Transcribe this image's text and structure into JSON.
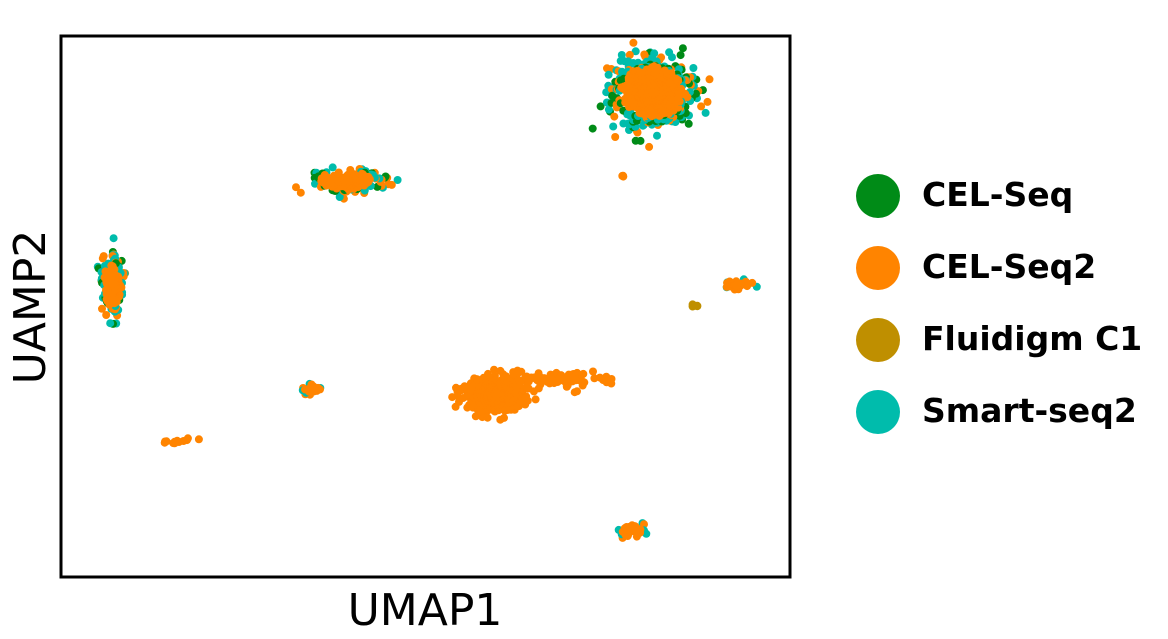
{
  "chart_data": {
    "type": "scatter",
    "title": "",
    "xlabel": "UMAP1",
    "ylabel": "UAMP2",
    "xlim": [
      0,
      100
    ],
    "ylim": [
      0,
      100
    ],
    "grid": false,
    "ticks": "hidden",
    "legend_placement": "right",
    "series": [
      {
        "name": "CEL-Seq",
        "color": "#008b17"
      },
      {
        "name": "CEL-Seq2",
        "color": "#ff8400"
      },
      {
        "name": "Fluidigm C1",
        "color": "#bf8f00"
      },
      {
        "name": "Smart-seq2",
        "color": "#00bcac"
      }
    ],
    "clusters": [
      {
        "x": 82,
        "y": 91,
        "spread_x": 5.0,
        "spread_y": 5.5,
        "approx_points": 700,
        "composition": "mostly CEL-Seq2, rim of CEL-Seq / Smart-seq2"
      },
      {
        "x": 39,
        "y": 74,
        "spread_x": 4.5,
        "spread_y": 2.0,
        "approx_points": 180,
        "composition": "mostly CEL-Seq2, some Smart-seq2 / CEL-Seq"
      },
      {
        "x": 6,
        "y": 54,
        "spread_x": 1.3,
        "spread_y": 5.0,
        "approx_points": 150,
        "composition": "CEL-Seq2 with CEL-Seq / Smart-seq2"
      },
      {
        "x": 60,
        "y": 33,
        "spread_x": 4.0,
        "spread_y": 3.0,
        "approx_points": 450,
        "composition": "mostly CEL-Seq2"
      },
      {
        "x": 70,
        "y": 36,
        "spread_x": 5.0,
        "spread_y": 1.3,
        "approx_points": 80,
        "composition": "CEL-Seq2 tail"
      },
      {
        "x": 34,
        "y": 34,
        "spread_x": 1.2,
        "spread_y": 0.8,
        "approx_points": 30,
        "composition": "CEL-Seq2 / Smart-seq2"
      },
      {
        "x": 94,
        "y": 54,
        "spread_x": 1.4,
        "spread_y": 1.0,
        "approx_points": 40,
        "composition": "CEL-Seq2 / Smart-seq2"
      },
      {
        "x": 88,
        "y": 50,
        "spread_x": 0.5,
        "spread_y": 0.4,
        "approx_points": 6,
        "composition": "Fluidigm C1"
      },
      {
        "x": 79,
        "y": 7,
        "spread_x": 1.5,
        "spread_y": 1.2,
        "approx_points": 40,
        "composition": "CEL-Seq2 / Smart-seq2"
      },
      {
        "x": 15,
        "y": 24,
        "spread_x": 2.5,
        "spread_y": 0.6,
        "approx_points": 12,
        "composition": "CEL-Seq2"
      },
      {
        "x": 78,
        "y": 75,
        "spread_x": 0.4,
        "spread_y": 0.4,
        "approx_points": 3,
        "composition": "CEL-Seq2"
      }
    ]
  }
}
